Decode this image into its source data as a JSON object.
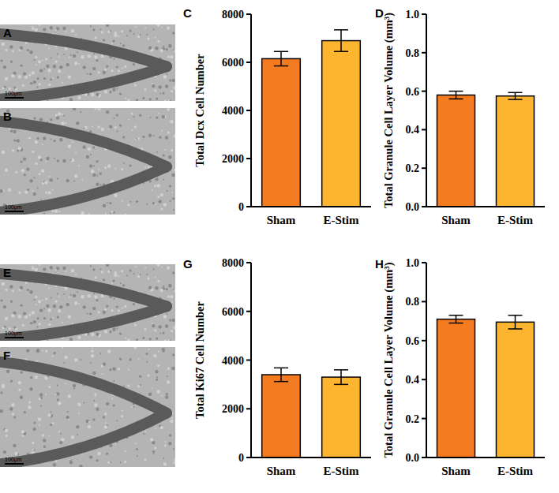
{
  "chart_data": [
    {
      "type": "bar",
      "panel": "C",
      "ylabel": "Total Dcx Cell Number",
      "categories": [
        "Sham",
        "E-Stim"
      ],
      "values": [
        6150,
        6900
      ],
      "errors": [
        300,
        450
      ],
      "colors": [
        "#f47b20",
        "#fdb42e"
      ],
      "ylim": [
        0,
        8000
      ],
      "yticks": [
        0,
        2000,
        4000,
        6000,
        8000
      ]
    },
    {
      "type": "bar",
      "panel": "D",
      "ylabel": "Total Granule Cell Layer Volume (mm³)",
      "categories": [
        "Sham",
        "E-Stim"
      ],
      "values": [
        0.58,
        0.575
      ],
      "errors": [
        0.02,
        0.018
      ],
      "colors": [
        "#f47b20",
        "#fdb42e"
      ],
      "ylim": [
        0,
        1
      ],
      "yticks": [
        {
          "value": 0,
          "label": "0.0"
        },
        0.2,
        0.4,
        0.6,
        0.8,
        {
          "value": 1,
          "label": "1.0"
        }
      ]
    },
    {
      "type": "bar",
      "panel": "G",
      "ylabel": "Total Ki67 Cell Number",
      "categories": [
        "Sham",
        "E-Stim"
      ],
      "values": [
        3400,
        3300
      ],
      "errors": [
        280,
        300
      ],
      "colors": [
        "#f47b20",
        "#fdb42e"
      ],
      "ylim": [
        0,
        8000
      ],
      "yticks": [
        0,
        2000,
        4000,
        6000,
        8000
      ]
    },
    {
      "type": "bar",
      "panel": "H",
      "ylabel": "Total Granule Cell Layer Volume (mm³)",
      "categories": [
        "Sham",
        "E-Stim"
      ],
      "values": [
        0.71,
        0.695
      ],
      "errors": [
        0.02,
        0.035
      ],
      "colors": [
        "#f47b20",
        "#fdb42e"
      ],
      "ylim": [
        0,
        1
      ],
      "yticks": [
        {
          "value": 0,
          "label": "0.0"
        },
        0.2,
        0.4,
        0.6,
        0.8,
        {
          "value": 1,
          "label": "1.0"
        }
      ]
    }
  ],
  "images": [
    {
      "panel": "A",
      "scale_bar": "100μm"
    },
    {
      "panel": "B",
      "scale_bar": "100μm"
    },
    {
      "panel": "E",
      "scale_bar": "100μm"
    },
    {
      "panel": "F",
      "scale_bar": "100μm"
    }
  ]
}
